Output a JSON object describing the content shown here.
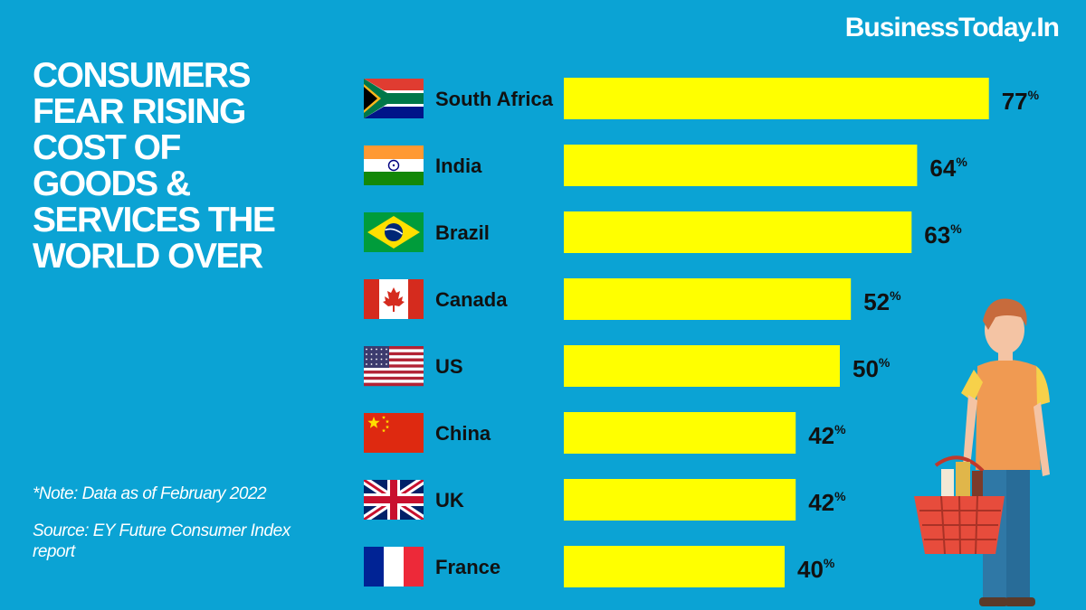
{
  "brand": "BusinessToday.In",
  "headline": "CONSUMERS\nFEAR RISING\nCOST OF\nGOODS &\nSERVICES THE\nWORLD OVER",
  "note": "*Note: Data as of February 2022",
  "source": "Source: EY Future Consumer Index report",
  "colors": {
    "background": "#0ba3d4",
    "bar": "#ffff00",
    "text": "#111111",
    "headline": "#ffffff"
  },
  "chart_data": {
    "type": "bar",
    "orientation": "horizontal",
    "title": "CONSUMERS FEAR RISING COST OF GOODS & SERVICES THE WORLD OVER",
    "xlabel": "",
    "ylabel": "",
    "value_suffix": "%",
    "xlim": [
      0,
      100
    ],
    "categories": [
      "South Africa",
      "India",
      "Brazil",
      "Canada",
      "US",
      "China",
      "UK",
      "France"
    ],
    "flags": [
      "south-africa-flag",
      "india-flag",
      "brazil-flag",
      "canada-flag",
      "us-flag",
      "china-flag",
      "uk-flag",
      "france-flag"
    ],
    "values": [
      77,
      64,
      63,
      52,
      50,
      42,
      42,
      40
    ]
  }
}
